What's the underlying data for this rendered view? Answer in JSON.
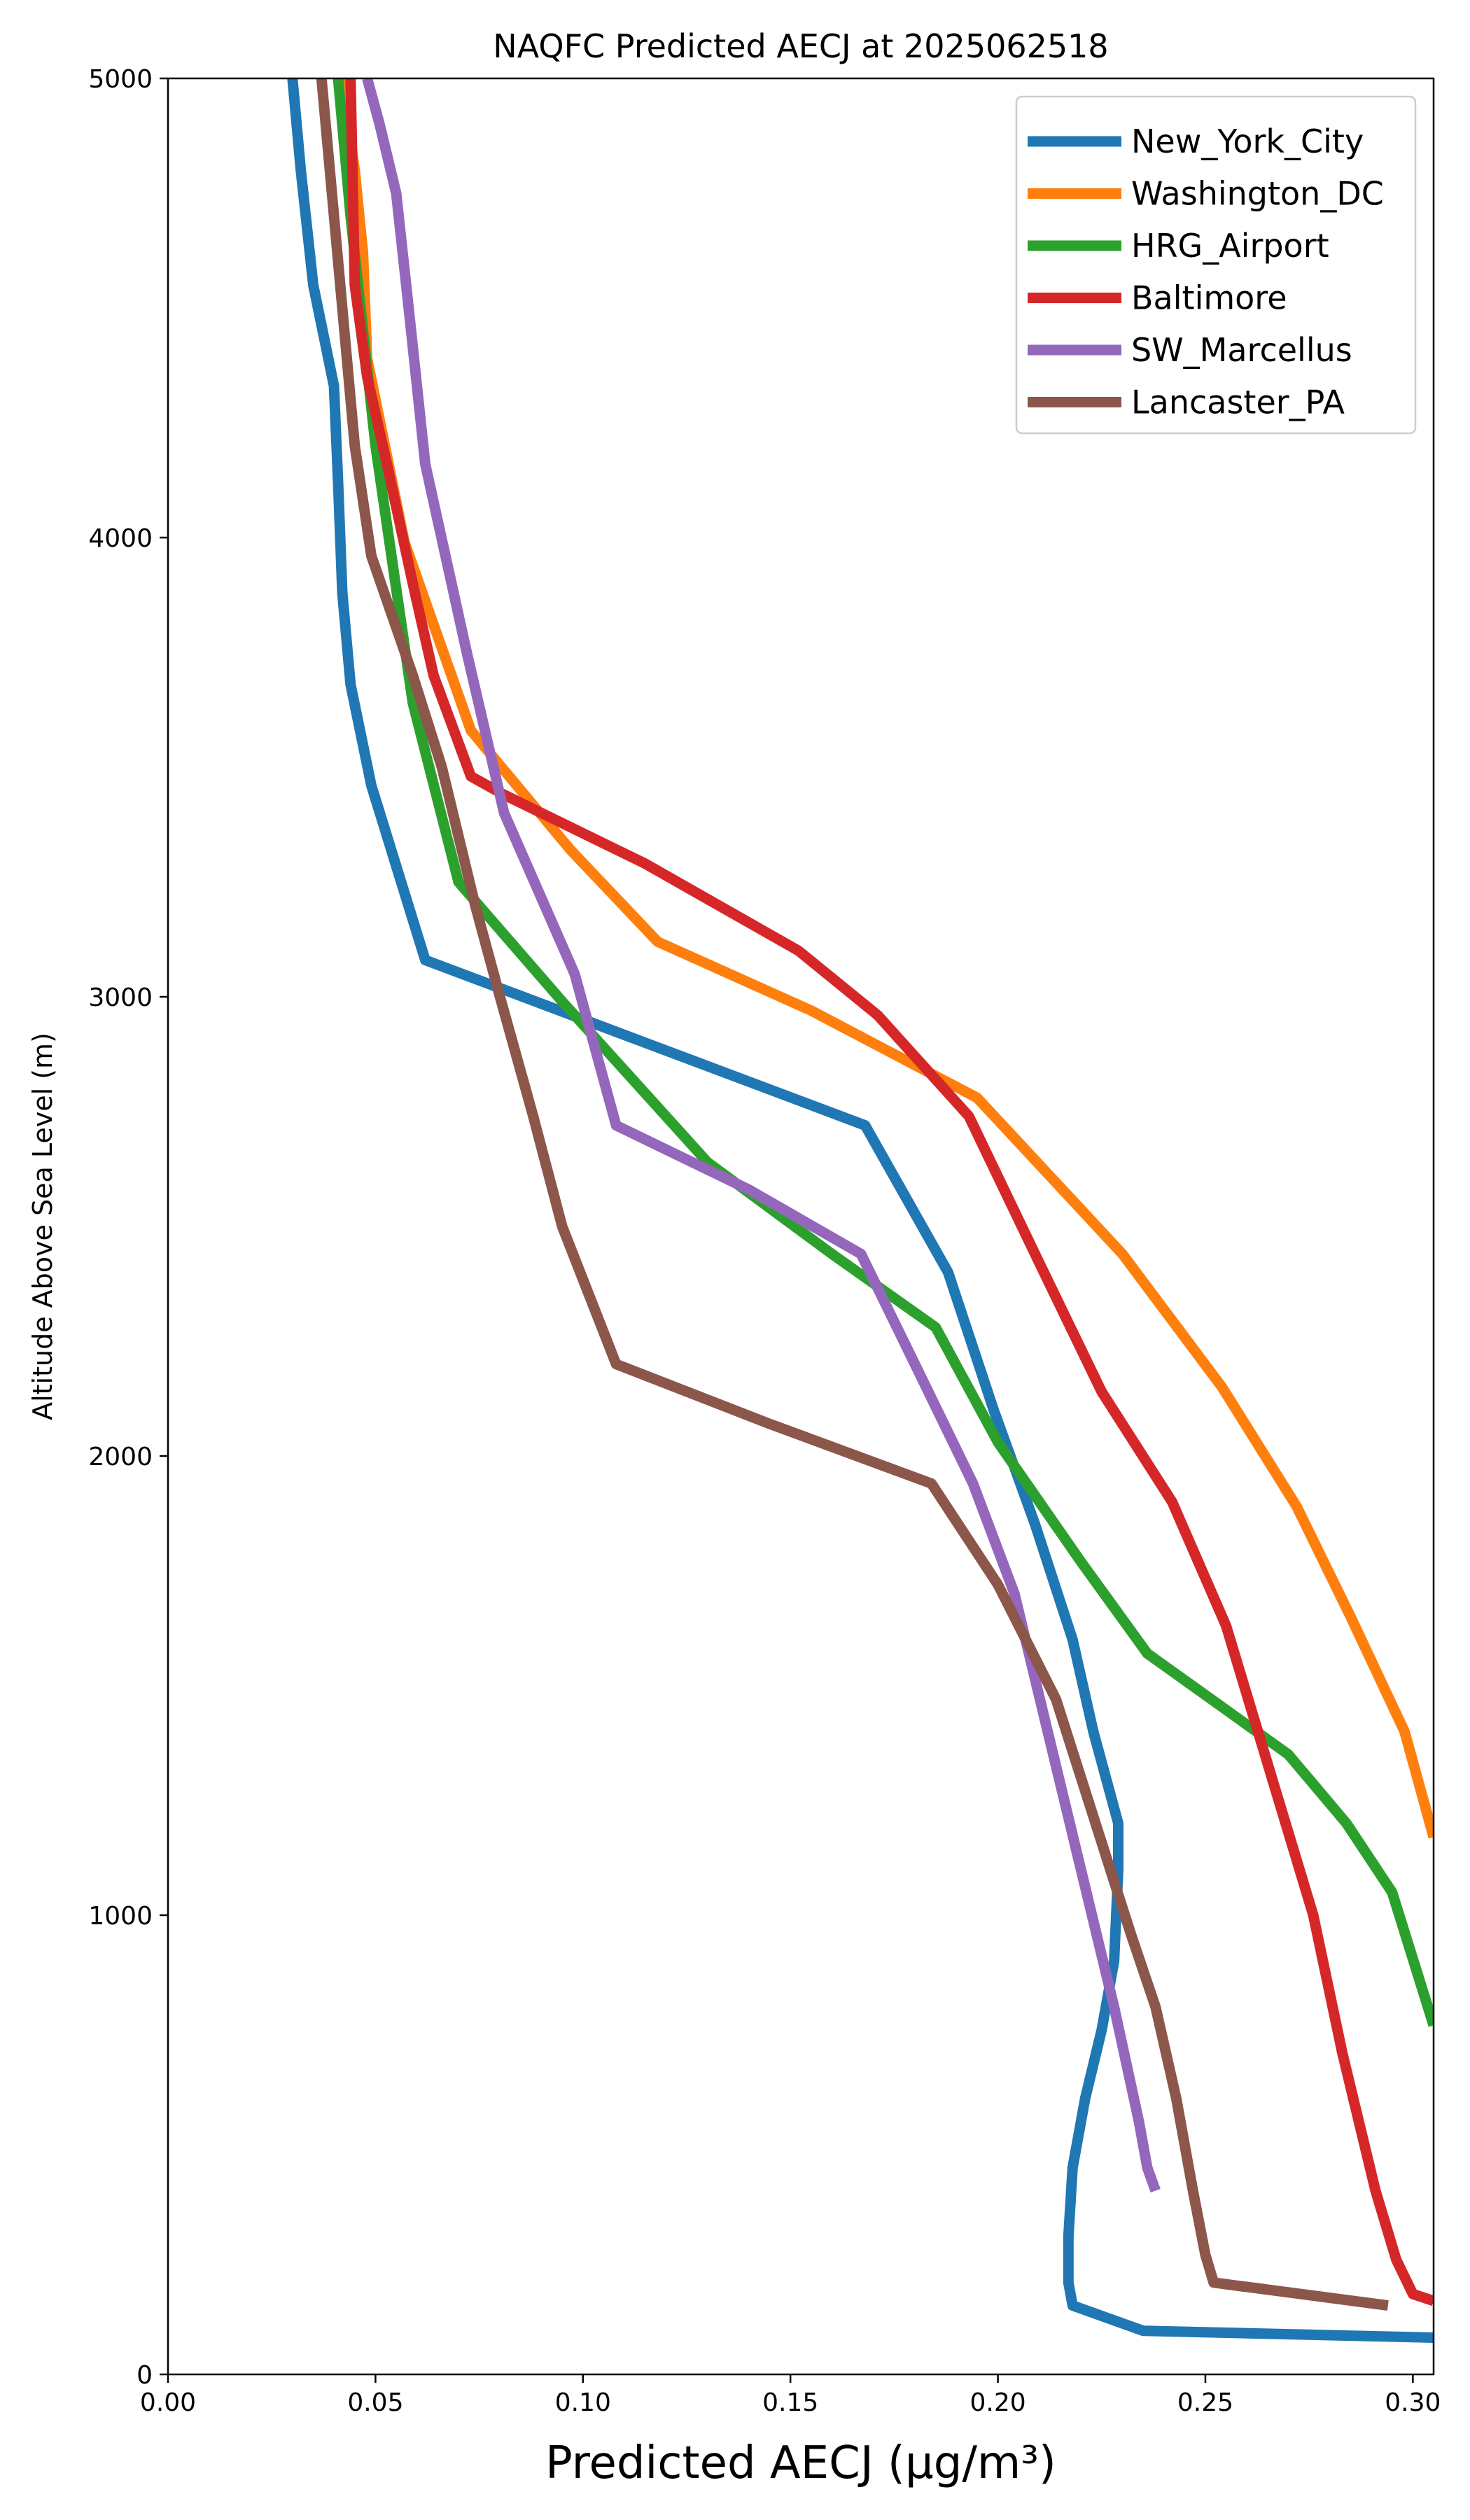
{
  "chart_data": {
    "type": "line",
    "title": "NAQFC Predicted AECJ at 2025062518",
    "xlabel": "Predicted AECJ (μg/m³)",
    "ylabel": "Altitude Above Sea Level (m)",
    "xlim": [
      0.0,
      0.305
    ],
    "ylim": [
      0,
      5000
    ],
    "xticks": [
      "0.00",
      "0.05",
      "0.10",
      "0.15",
      "0.20",
      "0.25",
      "0.30"
    ],
    "yticks": [
      "0",
      "1000",
      "2000",
      "3000",
      "4000",
      "5000"
    ],
    "grid": false,
    "legend_position": "top-right",
    "series": [
      {
        "name": "New_York_City",
        "color": "#1f77b4",
        "x": [
          0.305,
          0.235,
          0.218,
          0.217,
          0.217,
          0.218,
          0.221,
          0.225,
          0.228,
          0.229,
          0.229,
          0.223,
          0.218,
          0.209,
          0.199,
          0.188,
          0.168,
          0.115,
          0.062,
          0.049,
          0.044,
          0.042,
          0.041,
          0.04,
          0.035,
          0.032,
          0.03
        ],
        "y": [
          80,
          95,
          150,
          200,
          300,
          450,
          600,
          750,
          900,
          1100,
          1200,
          1400,
          1600,
          1850,
          2100,
          2400,
          2720,
          2900,
          3080,
          3460,
          3680,
          3880,
          4120,
          4330,
          4550,
          4800,
          5000
        ]
      },
      {
        "name": "Washington_DC",
        "color": "#ff7f0e",
        "x": [
          0.305,
          0.298,
          0.285,
          0.272,
          0.254,
          0.23,
          0.195,
          0.155,
          0.118,
          0.097,
          0.073,
          0.057,
          0.048,
          0.047,
          0.045,
          0.042
        ],
        "y": [
          1170,
          1400,
          1650,
          1890,
          2150,
          2440,
          2780,
          2970,
          3120,
          3320,
          3580,
          3990,
          4390,
          4620,
          4800,
          5000
        ]
      },
      {
        "name": "HRG_Airport",
        "color": "#2ca02c",
        "x": [
          0.305,
          0.295,
          0.284,
          0.27,
          0.253,
          0.236,
          0.22,
          0.2,
          0.185,
          0.16,
          0.13,
          0.095,
          0.07,
          0.059,
          0.05,
          0.044,
          0.041
        ],
        "y": [
          760,
          1050,
          1200,
          1350,
          1460,
          1570,
          1770,
          2030,
          2280,
          2440,
          2640,
          2990,
          3250,
          3640,
          4200,
          4700,
          5000
        ]
      },
      {
        "name": "Baltimore",
        "color": "#d62728",
        "x": [
          0.305,
          0.3,
          0.296,
          0.291,
          0.283,
          0.276,
          0.266,
          0.255,
          0.242,
          0.225,
          0.21,
          0.193,
          0.171,
          0.152,
          0.115,
          0.081,
          0.073,
          0.064,
          0.059,
          0.053,
          0.048,
          0.045,
          0.044
        ],
        "y": [
          160,
          175,
          250,
          400,
          700,
          1000,
          1300,
          1630,
          1900,
          2140,
          2420,
          2740,
          2960,
          3100,
          3290,
          3440,
          3480,
          3700,
          3900,
          4150,
          4350,
          4550,
          5000
        ]
      },
      {
        "name": "SW_Marcellus",
        "color": "#9467bd",
        "x": [
          0.238,
          0.236,
          0.234,
          0.228,
          0.22,
          0.212,
          0.204,
          0.194,
          0.18,
          0.167,
          0.14,
          0.108,
          0.098,
          0.081,
          0.072,
          0.062,
          0.058,
          0.055,
          0.051,
          0.048
        ],
        "y": [
          400,
          450,
          550,
          800,
          1100,
          1400,
          1700,
          1940,
          2200,
          2440,
          2580,
          2720,
          3050,
          3400,
          3750,
          4160,
          4500,
          4750,
          4900,
          5000
        ]
      },
      {
        "name": "Lancaster_PA",
        "color": "#8c564b",
        "x": [
          0.294,
          0.252,
          0.25,
          0.247,
          0.243,
          0.238,
          0.232,
          0.226,
          0.214,
          0.2,
          0.184,
          0.145,
          0.108,
          0.095,
          0.088,
          0.08,
          0.074,
          0.066,
          0.059,
          0.049,
          0.045,
          0.042,
          0.039,
          0.037
        ],
        "y": [
          150,
          200,
          260,
          400,
          600,
          800,
          960,
          1130,
          1470,
          1720,
          1940,
          2070,
          2200,
          2500,
          2740,
          3000,
          3200,
          3500,
          3700,
          3960,
          4200,
          4500,
          4800,
          5000
        ]
      }
    ]
  }
}
